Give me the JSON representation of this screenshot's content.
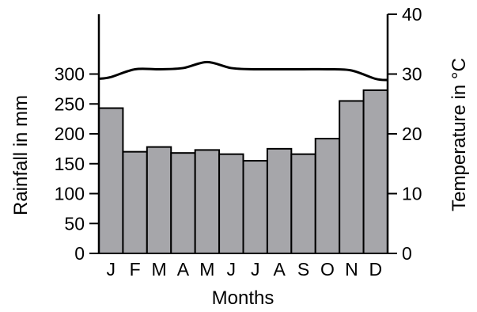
{
  "chart_data": {
    "type": "bar",
    "categories": [
      "J",
      "F",
      "M",
      "A",
      "M",
      "J",
      "J",
      "A",
      "S",
      "O",
      "N",
      "D"
    ],
    "series": [
      {
        "kind": "bar",
        "axis": "left",
        "values": [
          243,
          170,
          178,
          168,
          173,
          166,
          155,
          175,
          166,
          192,
          255,
          273
        ]
      },
      {
        "kind": "line",
        "axis": "right",
        "values": [
          29.5,
          30.8,
          30.8,
          31,
          32,
          31,
          30.8,
          30.8,
          30.8,
          30.8,
          30.6,
          29.2
        ]
      }
    ],
    "xlabel": "Months",
    "ylabel": "Rainfall in mm",
    "y2label": "Temperature in °C",
    "ylim": [
      0,
      400
    ],
    "y2lim": [
      0,
      40
    ],
    "yticks": [
      0,
      50,
      100,
      150,
      200,
      250,
      300
    ],
    "y2ticks": [
      0,
      10,
      20,
      30,
      40
    ],
    "grid": false,
    "colors": {
      "bar_fill": "#a6a6aa",
      "bar_stroke": "#000000",
      "line": "#000000"
    }
  }
}
